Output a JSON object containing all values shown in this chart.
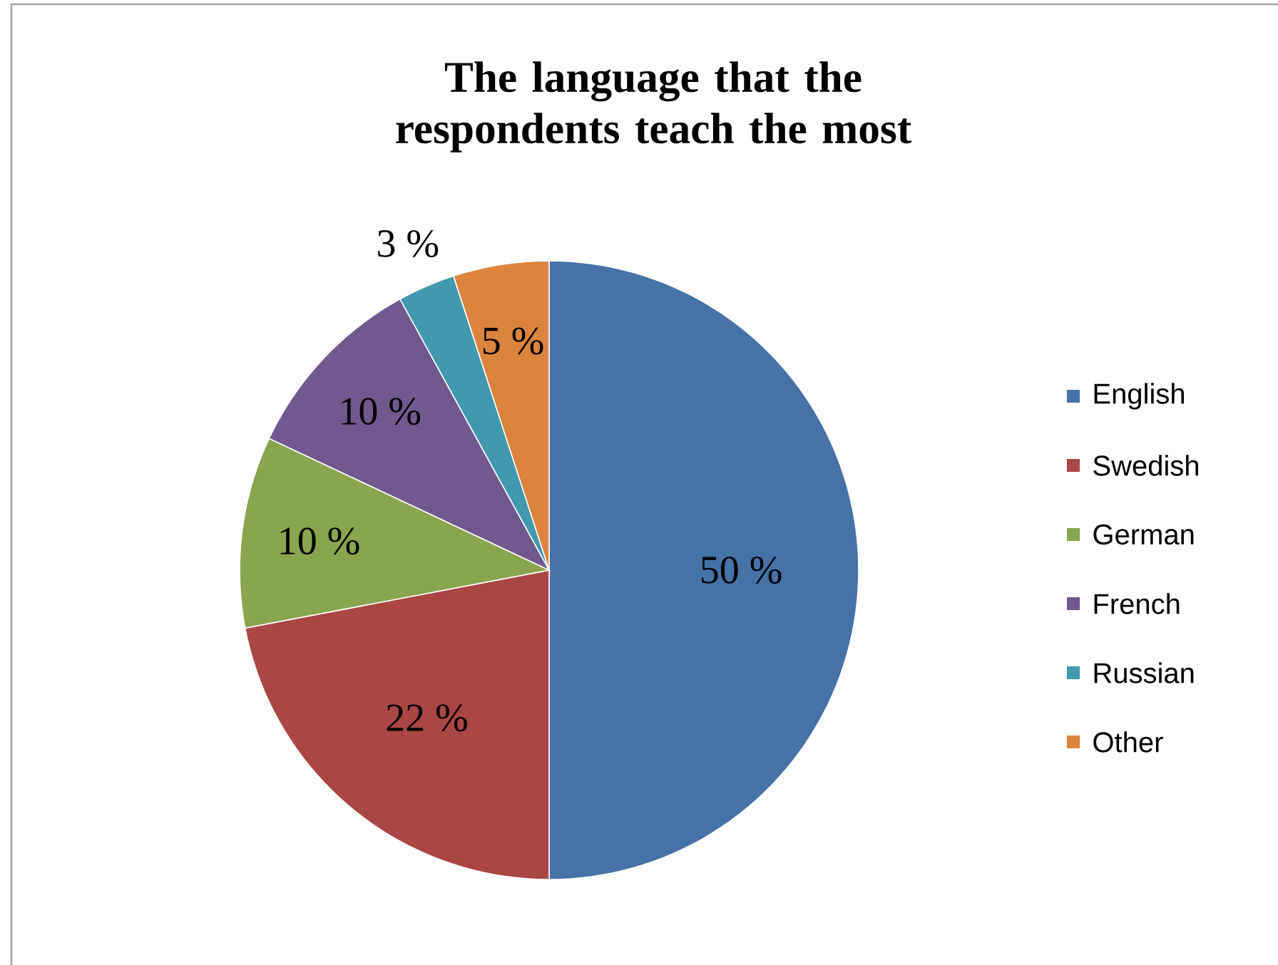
{
  "chart_data": {
    "type": "pie",
    "title": "The language that the respondents teach the most",
    "categories": [
      "English",
      "Swedish",
      "German",
      "French",
      "Russian",
      "Other"
    ],
    "values": [
      50,
      22,
      10,
      10,
      3,
      5
    ],
    "colors": [
      "#4572a7",
      "#aa4643",
      "#89a54e",
      "#71588f",
      "#4198af",
      "#db843d"
    ],
    "value_labels": [
      "50 %",
      "22 %",
      "10 %",
      "10 %",
      "3 %",
      "5 %"
    ],
    "legend": "right"
  }
}
